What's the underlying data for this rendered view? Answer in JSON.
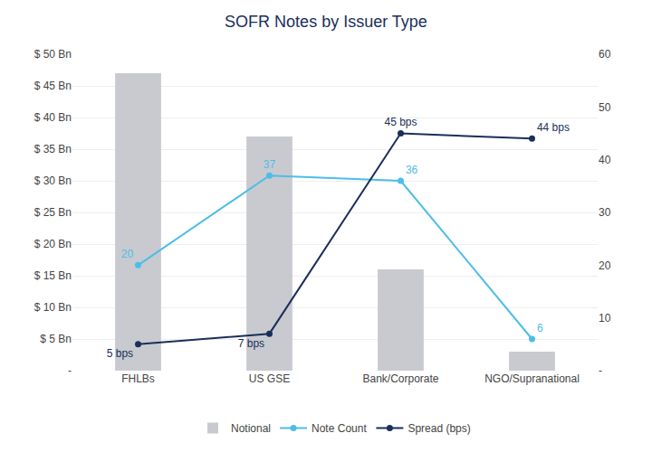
{
  "chart_data": {
    "type": "bar",
    "title": "SOFR Notes by Issuer Type",
    "categories": [
      "FHLBs",
      "US GSE",
      "Bank/Corporate",
      "NGO/Supranational"
    ],
    "series": [
      {
        "name": "Notional",
        "type": "bar",
        "color": "#c8cacf",
        "values": [
          47,
          37,
          16,
          3
        ]
      },
      {
        "name": "Note Count",
        "type": "line",
        "axis": "y2",
        "color": "#4dbde8",
        "marker": "circle",
        "data_labels": true,
        "values": [
          20,
          37,
          36,
          6
        ]
      },
      {
        "name": "Spread (bps)",
        "type": "line",
        "axis": "y2",
        "color": "#1a2f5a",
        "marker": "circle",
        "data_labels": true,
        "values": [
          5,
          7,
          45,
          44
        ],
        "value_labels": [
          "5 bps",
          "7 bps",
          "45 bps",
          "44 bps"
        ]
      }
    ],
    "ylim": [
      0,
      50
    ],
    "yticks": [
      {
        "value": 0,
        "label": "-"
      },
      {
        "value": 5,
        "label": "$ 5 Bn"
      },
      {
        "value": 10,
        "label": "$ 10 Bn"
      },
      {
        "value": 15,
        "label": "$ 15 Bn"
      },
      {
        "value": 20,
        "label": "$ 20 Bn"
      },
      {
        "value": 25,
        "label": "$ 25 Bn"
      },
      {
        "value": 30,
        "label": "$ 30 Bn"
      },
      {
        "value": 35,
        "label": "$ 35 Bn"
      },
      {
        "value": 40,
        "label": "$ 40 Bn"
      },
      {
        "value": 45,
        "label": "$ 45 Bn"
      },
      {
        "value": 50,
        "label": "$ 50 Bn"
      }
    ],
    "y2lim": [
      0,
      60
    ],
    "y2ticks": [
      {
        "value": 0,
        "label": "-"
      },
      10,
      20,
      30,
      40,
      50,
      60
    ],
    "grid": true,
    "legend": "bottom",
    "title_color": "#1a2f5a"
  }
}
